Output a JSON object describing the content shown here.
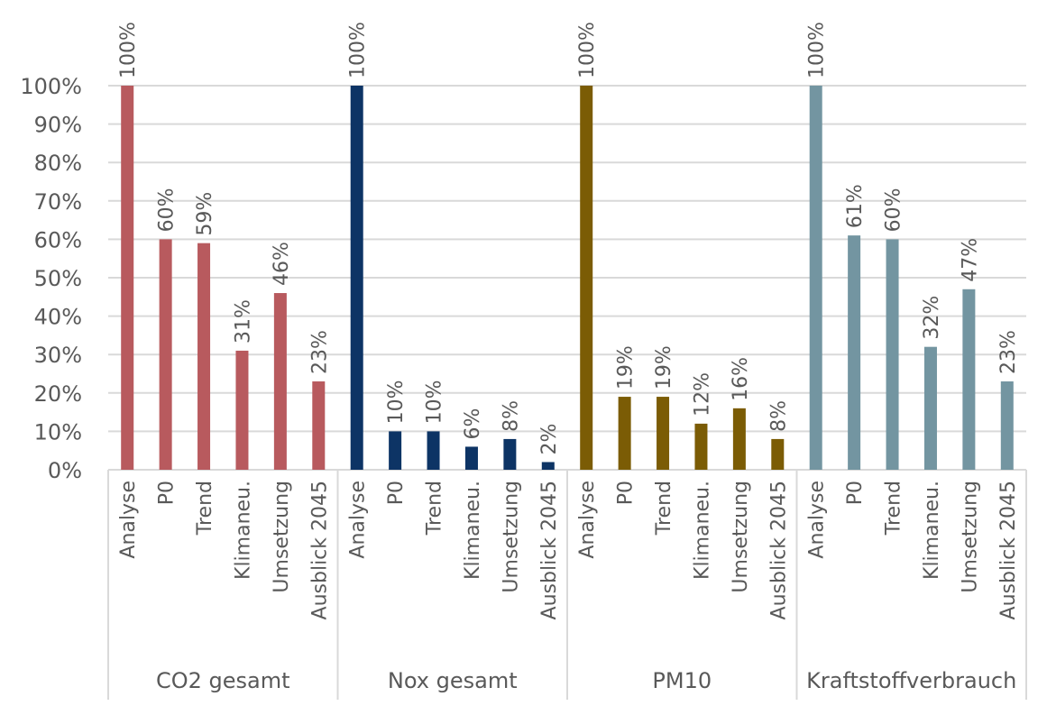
{
  "chart_data": {
    "type": "bar",
    "title": "",
    "xlabel": "",
    "ylabel": "",
    "ylim": [
      0,
      100
    ],
    "y_ticks": [
      "0%",
      "10%",
      "20%",
      "30%",
      "40%",
      "50%",
      "60%",
      "70%",
      "80%",
      "90%",
      "100%"
    ],
    "grid": true,
    "legend": "none",
    "categories": [
      "Analyse",
      "P0",
      "Trend",
      "Klimaneu.",
      "Umsetzung",
      "Ausblick 2045"
    ],
    "groups": [
      {
        "name": "CO2 gesamt",
        "color": "#b85a5e",
        "values": [
          100,
          60,
          59,
          31,
          46,
          23
        ],
        "labels": [
          "100%",
          "60%",
          "59%",
          "31%",
          "46%",
          "23%"
        ]
      },
      {
        "name": "Nox gesamt",
        "color": "#0d3465",
        "values": [
          100,
          10,
          10,
          6,
          8,
          2
        ],
        "labels": [
          "100%",
          "10%",
          "10%",
          "6%",
          "8%",
          "2%"
        ]
      },
      {
        "name": "PM10",
        "color": "#7b5c05",
        "values": [
          100,
          19,
          19,
          12,
          16,
          8
        ],
        "labels": [
          "100%",
          "19%",
          "19%",
          "12%",
          "16%",
          "8%"
        ]
      },
      {
        "name": "Kraftstoffverbrauch",
        "color": "#7395a1",
        "values": [
          100,
          61,
          60,
          32,
          47,
          23
        ],
        "labels": [
          "100%",
          "61%",
          "60%",
          "32%",
          "47%",
          "23%"
        ]
      }
    ]
  }
}
